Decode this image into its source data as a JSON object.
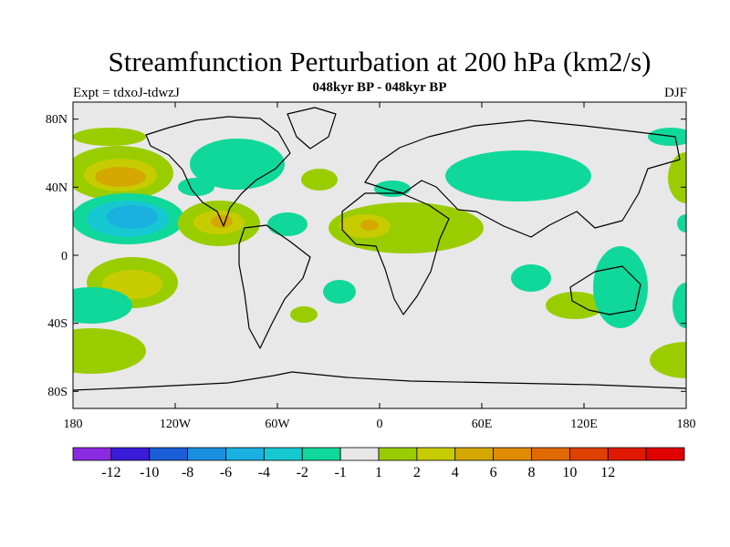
{
  "figure": {
    "title": "Streamfunction Perturbation at 200 hPa (km2/s)",
    "subtitle": "048kyr BP - 048kyr BP",
    "left_label": "Expt = tdxoJ-tdwzJ",
    "right_label": "DJF"
  },
  "axes": {
    "lat_ticks": [
      "80N",
      "40N",
      "0",
      "40S",
      "80S"
    ],
    "lon_ticks": [
      "180",
      "120W",
      "60W",
      "0",
      "60E",
      "120E",
      "180"
    ]
  },
  "colorbar": {
    "colors": [
      "#8a2be2",
      "#3a1cd8",
      "#1a5fd8",
      "#1a8fe0",
      "#1ab0e0",
      "#16c8d2",
      "#10d89a",
      "#e8e8e8",
      "#9acd00",
      "#c7cc00",
      "#d4a800",
      "#df8c00",
      "#e06a00",
      "#e04000",
      "#e01a00",
      "#e00000"
    ],
    "labels": [
      "-12",
      "-10",
      "-8",
      "-6",
      "-4",
      "-2",
      "-1",
      "1",
      "2",
      "4",
      "6",
      "8",
      "10",
      "12"
    ]
  },
  "colors": {
    "ocean_background": "#e8e8e8",
    "positive_weak": "#9acd00",
    "positive_mid": "#c7cc00",
    "positive_strong": "#d4a800",
    "negative_weak": "#10d89a",
    "negative_mid": "#16c8d2",
    "negative_strong": "#1ab0e0"
  }
}
